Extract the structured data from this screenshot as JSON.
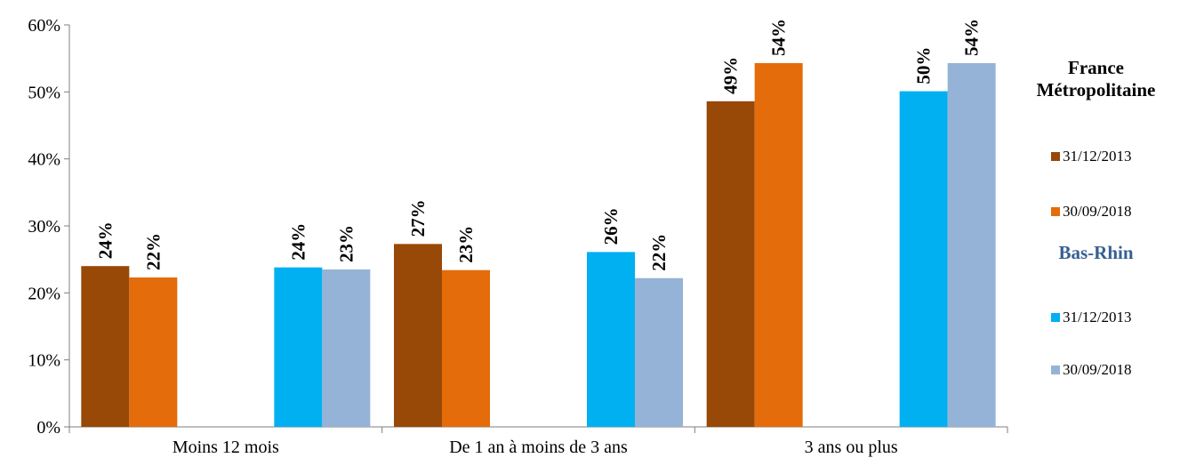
{
  "chart_data": {
    "type": "bar",
    "categories": [
      "Moins 12 mois",
      "De 1 an à moins de 3 ans",
      "3 ans ou plus"
    ],
    "ylim": [
      0,
      60
    ],
    "yticks": [
      "0%",
      "10%",
      "20%",
      "30%",
      "40%",
      "50%",
      "60%"
    ],
    "grid": false,
    "legend_position": "right",
    "groups": [
      {
        "name": "France Métropolitaine",
        "color": "#E46C0A",
        "series": [
          {
            "name": "31/12/2013",
            "color": "#984807",
            "values": [
              24,
              27.3,
              48.6
            ],
            "labels": [
              "24%",
              "27%",
              "49%"
            ]
          },
          {
            "name": "30/09/2018",
            "color": "#E46C0A",
            "values": [
              22.3,
              23.4,
              54.3
            ],
            "labels": [
              "22%",
              "23%",
              "54%"
            ]
          }
        ]
      },
      {
        "name": "Bas-Rhin",
        "color": "#376092",
        "series": [
          {
            "name": "31/12/2013",
            "color": "#00B0F0",
            "values": [
              23.8,
              26.1,
              50.1
            ],
            "labels": [
              "24%",
              "26%",
              "50%"
            ]
          },
          {
            "name": "30/09/2018",
            "color": "#95B3D7",
            "values": [
              23.5,
              22.2,
              54.3
            ],
            "labels": [
              "23%",
              "22%",
              "54%"
            ]
          }
        ]
      }
    ]
  },
  "legend": {
    "france_line1": "France",
    "france_line2": "Métropolitaine",
    "france_item1": "31/12/2013",
    "france_item2": "30/09/2018",
    "basrhin_title": "Bas-Rhin",
    "basrhin_item1": "31/12/2013",
    "basrhin_item2": "30/09/2018"
  }
}
